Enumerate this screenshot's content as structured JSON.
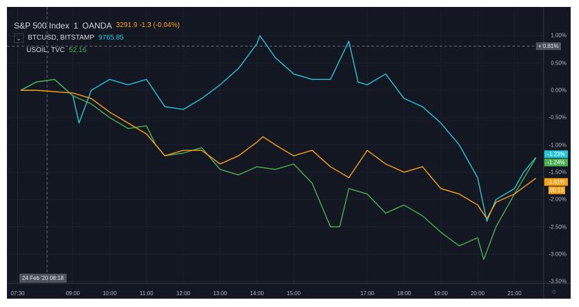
{
  "legend": {
    "main": {
      "symbol": "S&P 500 Index",
      "interval": "1",
      "source": "OANDA",
      "values": "3291.9  -1.3 (-0.04%)",
      "color": "#f7a21b"
    },
    "series": [
      {
        "label": "BTCUSD, BITSTAMP",
        "value": "9765.85",
        "color": "#26c6da"
      },
      {
        "label": "USOIL, TVC",
        "value": "52.16",
        "color": "#4caf50"
      }
    ],
    "collapse_icon": "chevron-down-icon"
  },
  "crosshair": {
    "time_label": "24 Feb '20   08:18",
    "price_label": "0.81%",
    "time": "08:18",
    "value": 0.81
  },
  "settings_icon": "gear-icon",
  "chart_data": {
    "type": "line",
    "ylabel_unit": "%",
    "ylim": [
      -3.5,
      1.0
    ],
    "yticks": [
      "1.00%",
      "0.50%",
      "0.00%",
      "-0.50%",
      "-1.00%",
      "-1.50%",
      "-2.00%",
      "-2.50%",
      "-3.00%",
      "-3.50%"
    ],
    "xticks": [
      "07:30",
      "09:00",
      "10:00",
      "11:00",
      "12:00",
      "13:00",
      "14:00",
      "15:00",
      "17:00",
      "18:00",
      "19:00",
      "20:00",
      "21:00"
    ],
    "grid": true,
    "series": [
      {
        "name": "BTCUSD",
        "color": "#26c6da",
        "last_label": "-1.23%",
        "points": [
          [
            "07:35",
            0
          ],
          [
            "08:00",
            0.15
          ],
          [
            "08:30",
            0.2
          ],
          [
            "09:00",
            -0.1
          ],
          [
            "09:10",
            -0.6
          ],
          [
            "09:30",
            0.0
          ],
          [
            "10:00",
            0.2
          ],
          [
            "10:30",
            0.1
          ],
          [
            "11:00",
            0.2
          ],
          [
            "11:30",
            -0.3
          ],
          [
            "12:00",
            -0.35
          ],
          [
            "12:30",
            -0.15
          ],
          [
            "13:00",
            0.1
          ],
          [
            "13:30",
            0.4
          ],
          [
            "14:00",
            0.85
          ],
          [
            "14:05",
            1.0
          ],
          [
            "14:30",
            0.6
          ],
          [
            "15:00",
            0.3
          ],
          [
            "15:30",
            0.2
          ],
          [
            "16:00",
            0.2
          ],
          [
            "16:30",
            0.9
          ],
          [
            "16:45",
            0.15
          ],
          [
            "17:00",
            0.1
          ],
          [
            "17:30",
            0.3
          ],
          [
            "18:00",
            -0.15
          ],
          [
            "18:30",
            -0.3
          ],
          [
            "19:00",
            -0.6
          ],
          [
            "19:30",
            -1.0
          ],
          [
            "20:00",
            -1.6
          ],
          [
            "20:15",
            -2.4
          ],
          [
            "20:30",
            -2.0
          ],
          [
            "21:00",
            -1.8
          ],
          [
            "21:15",
            -1.5
          ],
          [
            "21:35",
            -1.23
          ]
        ]
      },
      {
        "name": "USOIL",
        "color": "#4caf50",
        "last_label": "-1.24%",
        "points": [
          [
            "07:35",
            0
          ],
          [
            "08:00",
            0.15
          ],
          [
            "08:30",
            0.2
          ],
          [
            "09:00",
            -0.1
          ],
          [
            "09:30",
            -0.25
          ],
          [
            "10:00",
            -0.5
          ],
          [
            "10:30",
            -0.7
          ],
          [
            "11:00",
            -0.65
          ],
          [
            "11:15",
            -1.0
          ],
          [
            "11:30",
            -1.2
          ],
          [
            "12:00",
            -1.15
          ],
          [
            "12:30",
            -1.05
          ],
          [
            "13:00",
            -1.45
          ],
          [
            "13:30",
            -1.55
          ],
          [
            "14:00",
            -1.4
          ],
          [
            "14:30",
            -1.45
          ],
          [
            "15:00",
            -1.35
          ],
          [
            "15:30",
            -1.7
          ],
          [
            "16:00",
            -2.5
          ],
          [
            "16:15",
            -2.5
          ],
          [
            "16:30",
            -1.8
          ],
          [
            "17:00",
            -1.9
          ],
          [
            "17:30",
            -2.25
          ],
          [
            "18:00",
            -2.1
          ],
          [
            "18:30",
            -2.3
          ],
          [
            "19:00",
            -2.6
          ],
          [
            "19:30",
            -2.85
          ],
          [
            "20:00",
            -2.7
          ],
          [
            "20:10",
            -3.1
          ],
          [
            "20:30",
            -2.5
          ],
          [
            "21:00",
            -1.9
          ],
          [
            "21:35",
            -1.24
          ]
        ]
      },
      {
        "name": "S&P 500 Index",
        "color": "#f7a21b",
        "last_label": "-1.61%",
        "countdown": "00:13",
        "points": [
          [
            "07:35",
            0
          ],
          [
            "08:00",
            0.0
          ],
          [
            "09:00",
            -0.05
          ],
          [
            "09:30",
            -0.15
          ],
          [
            "10:00",
            -0.4
          ],
          [
            "10:30",
            -0.6
          ],
          [
            "11:00",
            -0.8
          ],
          [
            "11:30",
            -1.2
          ],
          [
            "12:00",
            -1.1
          ],
          [
            "12:30",
            -1.1
          ],
          [
            "13:00",
            -1.35
          ],
          [
            "13:30",
            -1.2
          ],
          [
            "14:00",
            -0.95
          ],
          [
            "14:10",
            -0.85
          ],
          [
            "14:30",
            -1.0
          ],
          [
            "15:00",
            -1.2
          ],
          [
            "15:30",
            -1.1
          ],
          [
            "16:00",
            -1.4
          ],
          [
            "16:30",
            -1.6
          ],
          [
            "17:00",
            -1.1
          ],
          [
            "17:30",
            -1.35
          ],
          [
            "18:00",
            -1.5
          ],
          [
            "18:30",
            -1.4
          ],
          [
            "19:00",
            -1.8
          ],
          [
            "19:30",
            -1.9
          ],
          [
            "20:00",
            -2.1
          ],
          [
            "20:15",
            -2.35
          ],
          [
            "20:30",
            -2.05
          ],
          [
            "21:00",
            -1.9
          ],
          [
            "21:35",
            -1.61
          ]
        ]
      }
    ]
  }
}
